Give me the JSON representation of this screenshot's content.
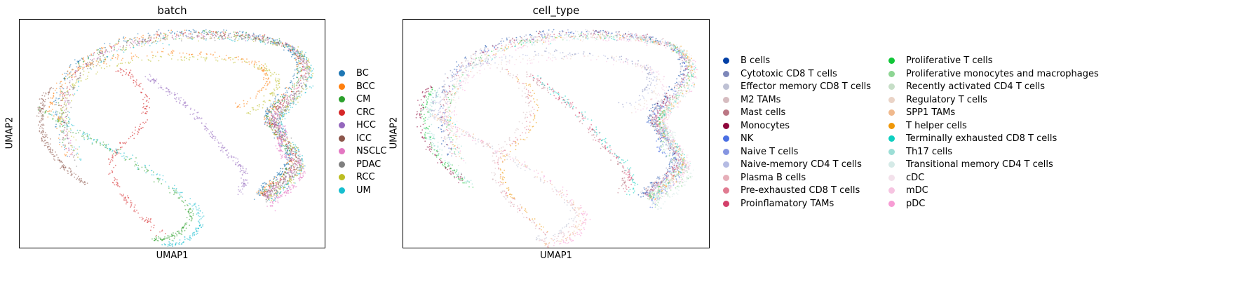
{
  "chart_data": [
    {
      "type": "scatter",
      "title": "batch",
      "xlabel": "UMAP1",
      "ylabel": "UMAP2",
      "grid": false,
      "ticks": false,
      "legend_placement": "right",
      "series": [
        {
          "name": "BC",
          "color": "#1f77b4"
        },
        {
          "name": "BCC",
          "color": "#ff7f0e"
        },
        {
          "name": "CM",
          "color": "#2ca02c"
        },
        {
          "name": "CRC",
          "color": "#d62728"
        },
        {
          "name": "HCC",
          "color": "#9467bd"
        },
        {
          "name": "ICC",
          "color": "#8c564b"
        },
        {
          "name": "NSCLC",
          "color": "#e377c2"
        },
        {
          "name": "PDAC",
          "color": "#7f7f7f"
        },
        {
          "name": "RCC",
          "color": "#bcbd22"
        },
        {
          "name": "UM",
          "color": "#17becf"
        }
      ]
    },
    {
      "type": "scatter",
      "title": "cell_type",
      "xlabel": "UMAP1",
      "ylabel": "UMAP2",
      "grid": false,
      "ticks": false,
      "legend_placement": "right",
      "series": [
        {
          "name": "B cells",
          "color": "#023fa5"
        },
        {
          "name": "Cytotoxic CD8 T cells",
          "color": "#7d87b9"
        },
        {
          "name": "Effector memory CD8 T cells",
          "color": "#bec1d4"
        },
        {
          "name": "M2 TAMs",
          "color": "#d6bcc0"
        },
        {
          "name": "Mast cells",
          "color": "#bb7784"
        },
        {
          "name": "Monocytes",
          "color": "#8e063b"
        },
        {
          "name": "NK",
          "color": "#4a6fe3"
        },
        {
          "name": "Naive T cells",
          "color": "#8595e1"
        },
        {
          "name": "Naive-memory CD4 T cells",
          "color": "#b5bbe3"
        },
        {
          "name": "Plasma B cells",
          "color": "#e6afb9"
        },
        {
          "name": "Pre-exhausted CD8 T cells",
          "color": "#e07b91"
        },
        {
          "name": "Proinflamatory TAMs",
          "color": "#d33f6a"
        },
        {
          "name": "Proliferative T cells",
          "color": "#11c638"
        },
        {
          "name": "Proliferative monocytes and macrophages",
          "color": "#8dd593"
        },
        {
          "name": "Recently activated CD4 T cells",
          "color": "#c6dec7"
        },
        {
          "name": "Regulatory T cells",
          "color": "#ead3c6"
        },
        {
          "name": "SPP1 TAMs",
          "color": "#f0b98d"
        },
        {
          "name": "T helper cells",
          "color": "#ef9708"
        },
        {
          "name": "Terminally exhausted CD8 T cells",
          "color": "#0fcfc0"
        },
        {
          "name": "Th17 cells",
          "color": "#9cded6"
        },
        {
          "name": "Transitional memory CD4 T cells",
          "color": "#d5eae7"
        },
        {
          "name": "cDC",
          "color": "#f3e1eb"
        },
        {
          "name": "mDC",
          "color": "#f6c4e1"
        },
        {
          "name": "pDC",
          "color": "#f79cd4"
        }
      ]
    }
  ]
}
